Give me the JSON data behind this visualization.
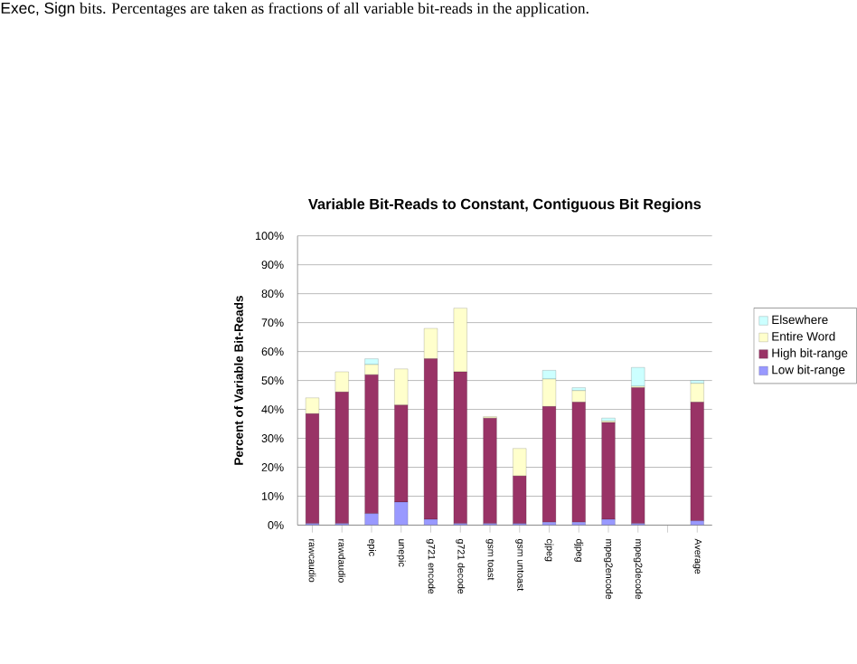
{
  "chart_data": {
    "type": "bar",
    "stacked": true,
    "title": "Variable Bit-Reads to Constant, Contiguous Bit Regions",
    "ylabel": "Percent of Variable Bit-Reads",
    "annotations": [
      "Exec, Sign",
      "bits. Percentages are taken as fractions of all variable bit-reads in the application."
    ],
    "categories": [
      "rawcaudio",
      "rawdaudio",
      "epic",
      "unepic",
      "g721 encode",
      "g721 decode",
      "gsm toast",
      "gsm untoast",
      "cjpeg",
      "djpeg",
      "mpeg2encode",
      "mpeg2decode",
      null,
      "Average"
    ],
    "series": [
      {
        "name": "Low bit-range",
        "color": "#9999ff",
        "values": [
          0.5,
          0.5,
          4,
          8,
          2,
          0.5,
          0.5,
          0.5,
          1,
          1,
          2,
          0.5,
          null,
          1.5
        ]
      },
      {
        "name": "High bit-range",
        "color": "#993366",
        "values": [
          38,
          45.5,
          48,
          33.5,
          55.5,
          52.5,
          36.5,
          16.5,
          40,
          41.5,
          33.5,
          47,
          null,
          41
        ]
      },
      {
        "name": "Entire Word",
        "color": "#ffffcc",
        "values": [
          5.5,
          7,
          3.5,
          12.5,
          10.5,
          22,
          0.5,
          9.5,
          9.5,
          4,
          0.5,
          0.5,
          null,
          6.5
        ]
      },
      {
        "name": "Elsewhere",
        "color": "#ccffff",
        "values": [
          0,
          0,
          2,
          0,
          0,
          0,
          0,
          0,
          3,
          1,
          1,
          6.5,
          null,
          1
        ]
      }
    ],
    "ylim": [
      0,
      100
    ],
    "yticks": [
      {
        "value": 0,
        "label": "0%"
      },
      {
        "value": 10,
        "label": "10%"
      },
      {
        "value": 20,
        "label": "20%"
      },
      {
        "value": 30,
        "label": "30%"
      },
      {
        "value": 40,
        "label": "40%"
      },
      {
        "value": 50,
        "label": "50%"
      },
      {
        "value": 60,
        "label": "60%"
      },
      {
        "value": 70,
        "label": "70%"
      },
      {
        "value": 80,
        "label": "80%"
      },
      {
        "value": 90,
        "label": "90%"
      },
      {
        "value": 100,
        "label": "100%"
      }
    ],
    "grid": "y",
    "legend": "right"
  }
}
